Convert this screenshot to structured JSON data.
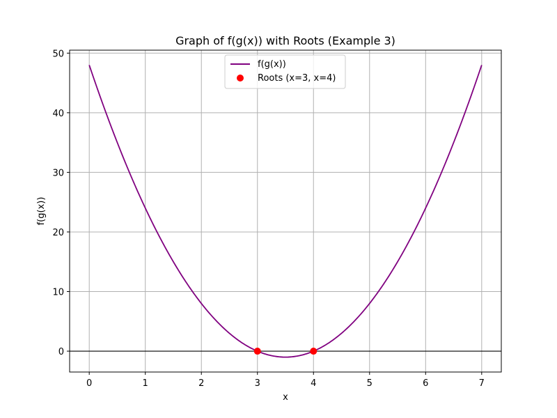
{
  "chart_data": {
    "type": "line",
    "title": "Graph of f(g(x)) with Roots (Example 3)",
    "xlabel": "x",
    "ylabel": "f(g(x))",
    "xlim": [
      -0.35,
      7.35
    ],
    "ylim": [
      -3.5,
      50.5
    ],
    "xticks": [
      0,
      1,
      2,
      3,
      4,
      5,
      6,
      7
    ],
    "yticks": [
      0,
      10,
      20,
      30,
      40,
      50
    ],
    "grid": true,
    "function": "4*(x-3)*(x-4)",
    "x_range": [
      0,
      7
    ],
    "series": [
      {
        "name": "f(g(x))",
        "type": "line",
        "color": "#800080",
        "x": [
          0,
          0.5,
          1,
          1.5,
          2,
          2.5,
          3,
          3.25,
          3.5,
          3.75,
          4,
          4.5,
          5,
          5.5,
          6,
          6.5,
          7
        ],
        "y": [
          48,
          35,
          24,
          15,
          8,
          3,
          0,
          -0.75,
          -1,
          -0.75,
          0,
          3,
          8,
          15,
          24,
          35,
          48
        ]
      },
      {
        "name": "Roots (x=3, x=4)",
        "type": "scatter",
        "color": "#ff0000",
        "x": [
          3,
          4
        ],
        "y": [
          0,
          0
        ]
      }
    ],
    "hline": {
      "y": 0,
      "color": "#000000"
    },
    "legend_position": "top-center"
  }
}
